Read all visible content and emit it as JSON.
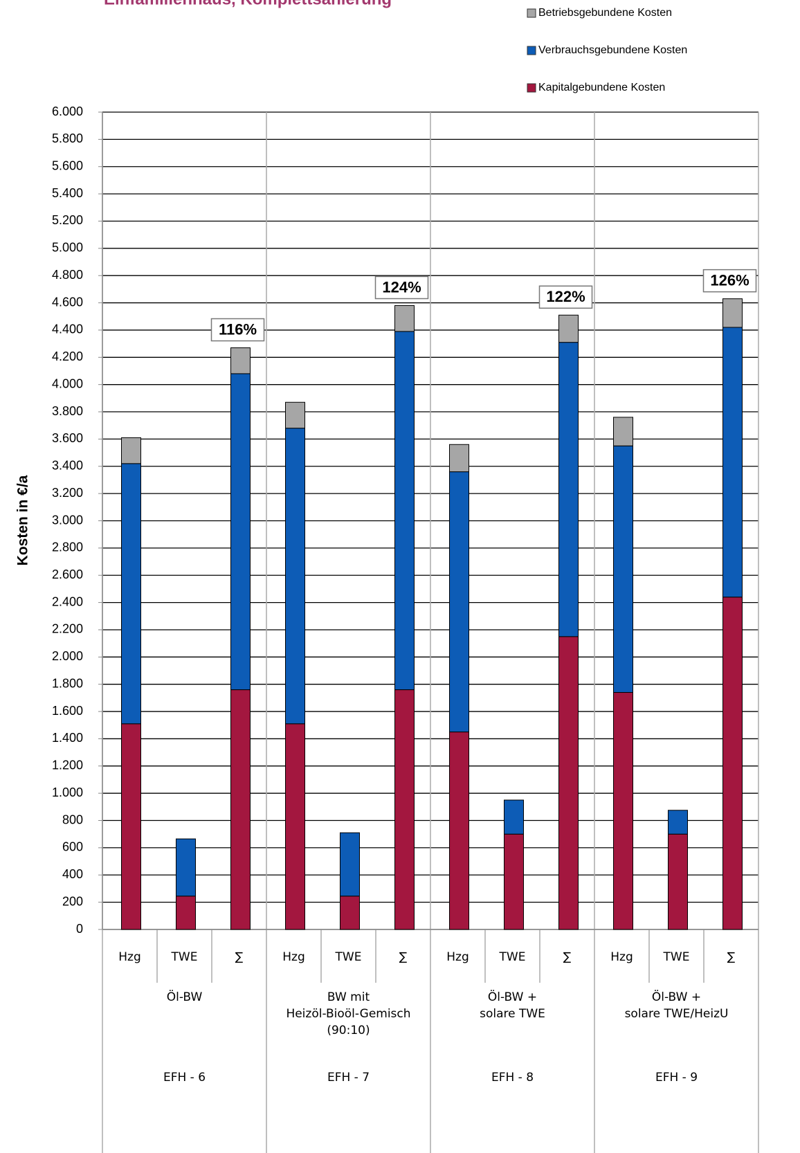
{
  "chart_data": {
    "type": "stacked_bar",
    "title": "Einfamilienhaus, Komplettsanierung",
    "y_label": "Kosten in €/a",
    "categories": [
      "Hzg",
      "TWE",
      "∑",
      "Hzg",
      "TWE",
      "∑",
      "Hzg",
      "TWE",
      "∑",
      "Hzg",
      "TWE",
      "∑"
    ],
    "groups": [
      {
        "label_lines": [
          "Öl-BW"
        ],
        "code": "EFH - 6"
      },
      {
        "label_lines": [
          "BW mit",
          "Heizöl-Bioöl-Gemisch",
          "(90:10)"
        ],
        "code": "EFH - 7"
      },
      {
        "label_lines": [
          "Öl-BW +",
          "solare TWE"
        ],
        "code": "EFH - 8"
      },
      {
        "label_lines": [
          "Öl-BW +",
          "solare TWE/HeizU"
        ],
        "code": "EFH - 9"
      }
    ],
    "series": [
      {
        "name": "Kapitalgebundene Kosten",
        "color": "#a3173f",
        "values": [
          1510,
          245,
          1760,
          1510,
          245,
          1760,
          1450,
          700,
          2150,
          1740,
          700,
          2440
        ]
      },
      {
        "name": "Verbrauchsgebundene Kosten",
        "color": "#0d5cb6",
        "values": [
          1910,
          420,
          2320,
          2170,
          465,
          2630,
          1910,
          250,
          2160,
          1810,
          175,
          1980
        ]
      },
      {
        "name": "Betriebsgebundene Kosten",
        "color": "#a6a6a6",
        "values": [
          190,
          0,
          190,
          190,
          0,
          190,
          200,
          0,
          200,
          210,
          0,
          210
        ]
      }
    ],
    "annotations": [
      {
        "category_index": 2,
        "text": "116%"
      },
      {
        "category_index": 5,
        "text": "124%"
      },
      {
        "category_index": 8,
        "text": "122%"
      },
      {
        "category_index": 11,
        "text": "126%"
      }
    ],
    "ylim": [
      0,
      6000
    ],
    "yticks": [
      0,
      200,
      400,
      600,
      800,
      {
        "value": 1000,
        "label": "1.000"
      },
      {
        "value": 1200,
        "label": "1.200"
      },
      {
        "value": 1400,
        "label": "1.400"
      },
      {
        "value": 1600,
        "label": "1.600"
      },
      {
        "value": 1800,
        "label": "1.800"
      },
      {
        "value": 2000,
        "label": "2.000"
      },
      {
        "value": 2200,
        "label": "2.200"
      },
      {
        "value": 2400,
        "label": "2.400"
      },
      {
        "value": 2600,
        "label": "2.600"
      },
      {
        "value": 2800,
        "label": "2.800"
      },
      {
        "value": 3000,
        "label": "3.000"
      },
      {
        "value": 3200,
        "label": "3.200"
      },
      {
        "value": 3400,
        "label": "3.400"
      },
      {
        "value": 3600,
        "label": "3.600"
      },
      {
        "value": 3800,
        "label": "3.800"
      },
      {
        "value": 4000,
        "label": "4.000"
      },
      {
        "value": 4200,
        "label": "4.200"
      },
      {
        "value": 4400,
        "label": "4.400"
      },
      {
        "value": 4600,
        "label": "4.600"
      },
      {
        "value": 4800,
        "label": "4.800"
      },
      {
        "value": 5000,
        "label": "5.000"
      },
      {
        "value": 5200,
        "label": "5.200"
      },
      {
        "value": 5400,
        "label": "5.400"
      },
      {
        "value": 5600,
        "label": "5.600"
      },
      {
        "value": 5800,
        "label": "5.800"
      },
      {
        "value": 6000,
        "label": "6.000"
      }
    ],
    "grid": true,
    "legend": "top-right"
  }
}
